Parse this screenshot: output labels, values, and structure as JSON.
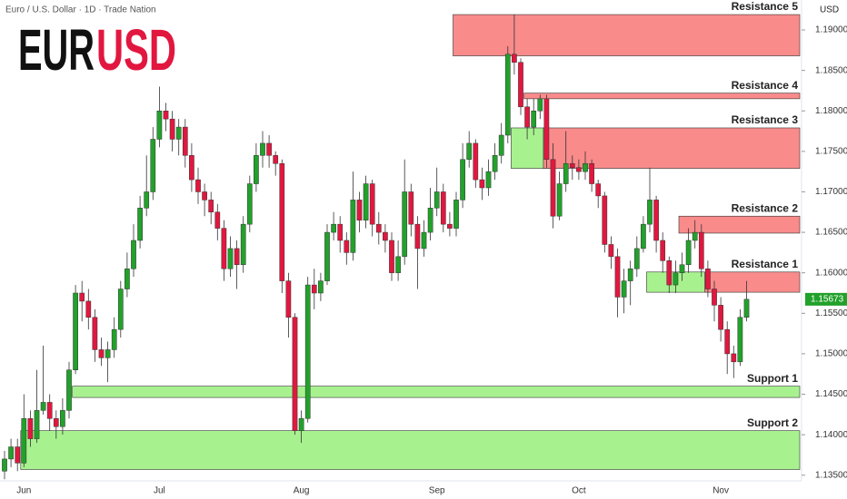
{
  "chart_data": {
    "type": "candlestick",
    "header": "Euro / U.S. Dollar · 1D · Trade Nation",
    "logo": [
      "EUR",
      "USD"
    ],
    "currency": "USD",
    "last_price": 1.15673,
    "up_color": "#22a12b",
    "down_color": "#e2173f",
    "resistance_color": "#f98b8b",
    "support_color": "#a8f18f",
    "ylim": [
      1.1343,
      1.1937
    ],
    "yticks": [
      {
        "value": 1.135,
        "label": "1.13500"
      },
      {
        "value": 1.14,
        "label": "1.14000"
      },
      {
        "value": 1.145,
        "label": "1.14500"
      },
      {
        "value": 1.15,
        "label": "1.15000"
      },
      {
        "value": 1.155,
        "label": "1.15500"
      },
      {
        "value": 1.16,
        "label": "1.16000"
      },
      {
        "value": 1.165,
        "label": "1.16500"
      },
      {
        "value": 1.17,
        "label": "1.17000"
      },
      {
        "value": 1.175,
        "label": "1.17500"
      },
      {
        "value": 1.18,
        "label": "1.18000"
      },
      {
        "value": 1.185,
        "label": "1.18500"
      },
      {
        "value": 1.19,
        "label": "1.19000"
      }
    ],
    "categories": [
      null,
      null,
      null,
      "Jun",
      null,
      null,
      null,
      null,
      null,
      null,
      null,
      null,
      null,
      null,
      null,
      null,
      null,
      null,
      null,
      null,
      null,
      null,
      null,
      null,
      "Jul",
      null,
      null,
      null,
      null,
      null,
      null,
      null,
      null,
      null,
      null,
      null,
      null,
      null,
      null,
      null,
      null,
      null,
      null,
      null,
      null,
      null,
      "Aug",
      null,
      null,
      null,
      null,
      null,
      null,
      null,
      null,
      null,
      null,
      null,
      null,
      null,
      null,
      null,
      null,
      null,
      null,
      null,
      null,
      "Sep",
      null,
      null,
      null,
      null,
      null,
      null,
      null,
      null,
      null,
      null,
      null,
      null,
      null,
      null,
      null,
      null,
      null,
      null,
      null,
      null,
      null,
      "Oct",
      null,
      null,
      null,
      null,
      null,
      null,
      null,
      null,
      null,
      null,
      null,
      null,
      null,
      null,
      null,
      null,
      null,
      null,
      null,
      null,
      null,
      "Nov",
      null,
      null,
      null,
      null
    ],
    "open": [
      1.1355,
      1.137,
      1.1385,
      1.1365,
      1.142,
      1.1395,
      1.143,
      1.144,
      1.142,
      1.141,
      1.143,
      1.148,
      1.1575,
      1.1565,
      1.1545,
      1.1505,
      1.1495,
      1.1505,
      1.153,
      1.158,
      1.1605,
      1.164,
      1.168,
      1.17,
      1.1765,
      1.18,
      1.179,
      1.1765,
      1.178,
      1.1745,
      1.1715,
      1.17,
      1.169,
      1.1675,
      1.1655,
      1.1605,
      1.163,
      1.161,
      1.166,
      1.171,
      1.1745,
      1.176,
      1.1745,
      1.1735,
      1.159,
      1.1545,
      1.1405,
      1.142,
      1.1585,
      1.1575,
      1.159,
      1.165,
      1.166,
      1.164,
      1.1625,
      1.169,
      1.1665,
      1.171,
      1.166,
      1.165,
      1.164,
      1.16,
      1.162,
      1.17,
      1.166,
      1.163,
      1.165,
      1.168,
      1.17,
      1.166,
      1.1655,
      1.169,
      1.174,
      1.176,
      1.1715,
      1.1705,
      1.1725,
      1.1745,
      1.177,
      1.187,
      1.186,
      1.1805,
      1.178,
      1.18,
      1.1815,
      1.174,
      1.167,
      1.171,
      1.1735,
      1.173,
      1.1725,
      1.1735,
      1.171,
      1.1695,
      1.1635,
      1.162,
      1.157,
      1.159,
      1.1605,
      1.163,
      1.166,
      1.169,
      1.164,
      1.1615,
      1.1585,
      1.16,
      1.161,
      1.164,
      1.165,
      1.1605,
      1.158,
      1.156,
      1.153,
      1.15,
      1.149,
      1.1545
    ],
    "high": [
      1.138,
      1.1395,
      1.1395,
      1.145,
      1.143,
      1.148,
      1.151,
      1.145,
      1.143,
      1.1445,
      1.149,
      1.1585,
      1.159,
      1.158,
      1.1555,
      1.152,
      1.1515,
      1.1545,
      1.159,
      1.1625,
      1.166,
      1.1695,
      1.1745,
      1.178,
      1.183,
      1.181,
      1.18,
      1.179,
      1.179,
      1.176,
      1.173,
      1.171,
      1.17,
      1.1685,
      1.1665,
      1.1645,
      1.164,
      1.167,
      1.172,
      1.176,
      1.1775,
      1.177,
      1.175,
      1.174,
      1.16,
      1.155,
      1.143,
      1.1595,
      1.1605,
      1.16,
      1.166,
      1.1675,
      1.167,
      1.165,
      1.1725,
      1.17,
      1.172,
      1.1715,
      1.1675,
      1.166,
      1.165,
      1.164,
      1.174,
      1.171,
      1.167,
      1.1665,
      1.1705,
      1.173,
      1.171,
      1.1675,
      1.17,
      1.176,
      1.1775,
      1.1765,
      1.173,
      1.174,
      1.176,
      1.1785,
      1.188,
      1.1919,
      1.1865,
      1.1815,
      1.1815,
      1.182,
      1.182,
      1.176,
      1.1725,
      1.1775,
      1.1745,
      1.174,
      1.175,
      1.174,
      1.1715,
      1.17,
      1.1645,
      1.163,
      1.1605,
      1.1615,
      1.1645,
      1.167,
      1.173,
      1.1695,
      1.165,
      1.162,
      1.1615,
      1.1625,
      1.1655,
      1.1665,
      1.166,
      1.1615,
      1.159,
      1.157,
      1.154,
      1.151,
      1.1555,
      1.159
    ],
    "low": [
      1.1345,
      1.136,
      1.1355,
      1.136,
      1.1385,
      1.139,
      1.1425,
      1.1405,
      1.1395,
      1.14,
      1.142,
      1.1475,
      1.154,
      1.153,
      1.149,
      1.1485,
      1.1465,
      1.1495,
      1.152,
      1.157,
      1.1595,
      1.163,
      1.167,
      1.169,
      1.1755,
      1.1775,
      1.175,
      1.1745,
      1.173,
      1.17,
      1.1685,
      1.167,
      1.166,
      1.164,
      1.159,
      1.1595,
      1.158,
      1.16,
      1.165,
      1.17,
      1.173,
      1.173,
      1.172,
      1.1575,
      1.152,
      1.14,
      1.139,
      1.1415,
      1.1555,
      1.1565,
      1.1585,
      1.164,
      1.1625,
      1.161,
      1.1615,
      1.165,
      1.1655,
      1.1645,
      1.1635,
      1.1625,
      1.159,
      1.159,
      1.161,
      1.1645,
      1.158,
      1.162,
      1.164,
      1.167,
      1.165,
      1.1645,
      1.1645,
      1.168,
      1.173,
      1.1705,
      1.169,
      1.1695,
      1.1715,
      1.1735,
      1.176,
      1.1845,
      1.1795,
      1.1765,
      1.177,
      1.179,
      1.173,
      1.1655,
      1.1665,
      1.17,
      1.1715,
      1.1715,
      1.1715,
      1.17,
      1.168,
      1.1625,
      1.1605,
      1.1545,
      1.155,
      1.156,
      1.1595,
      1.1625,
      1.165,
      1.1625,
      1.16,
      1.1575,
      1.1575,
      1.159,
      1.16,
      1.163,
      1.1595,
      1.157,
      1.154,
      1.1515,
      1.1475,
      1.147,
      1.1485,
      1.154
    ],
    "close": [
      1.137,
      1.1385,
      1.1365,
      1.142,
      1.1395,
      1.143,
      1.144,
      1.142,
      1.141,
      1.143,
      1.148,
      1.1575,
      1.1565,
      1.1545,
      1.1505,
      1.1495,
      1.1505,
      1.153,
      1.158,
      1.1605,
      1.164,
      1.168,
      1.17,
      1.1765,
      1.18,
      1.179,
      1.1765,
      1.178,
      1.1745,
      1.1715,
      1.17,
      1.169,
      1.1675,
      1.1655,
      1.1605,
      1.163,
      1.161,
      1.166,
      1.171,
      1.1745,
      1.176,
      1.1745,
      1.1735,
      1.159,
      1.1545,
      1.1405,
      1.142,
      1.1585,
      1.1575,
      1.159,
      1.165,
      1.166,
      1.164,
      1.1625,
      1.169,
      1.1665,
      1.171,
      1.166,
      1.165,
      1.164,
      1.16,
      1.162,
      1.17,
      1.166,
      1.163,
      1.165,
      1.168,
      1.17,
      1.166,
      1.1655,
      1.169,
      1.174,
      1.176,
      1.1715,
      1.1705,
      1.1725,
      1.1745,
      1.177,
      1.187,
      1.186,
      1.1805,
      1.178,
      1.18,
      1.1815,
      1.174,
      1.167,
      1.171,
      1.1735,
      1.173,
      1.1725,
      1.1735,
      1.171,
      1.1695,
      1.1635,
      1.162,
      1.157,
      1.159,
      1.1605,
      1.163,
      1.166,
      1.169,
      1.164,
      1.1615,
      1.1585,
      1.16,
      1.161,
      1.164,
      1.165,
      1.1605,
      1.158,
      1.156,
      1.153,
      1.15,
      1.149,
      1.1545,
      1.15673
    ],
    "zones": [
      {
        "label": "Resistance 5",
        "kind": "resistance",
        "high": 1.1919,
        "low": 1.1868,
        "start": 70
      },
      {
        "label": "Resistance 4",
        "kind": "resistance",
        "high": 1.1822,
        "low": 1.1815,
        "start": 81
      },
      {
        "kind": "support",
        "high": 1.1779,
        "low": 1.1729,
        "start": 79,
        "end": 84
      },
      {
        "label": "Resistance 3",
        "kind": "resistance",
        "high": 1.1779,
        "low": 1.1729,
        "start": 84
      },
      {
        "label": "Resistance 2",
        "kind": "resistance",
        "high": 1.167,
        "low": 1.1649,
        "start": 105
      },
      {
        "kind": "support",
        "high": 1.1601,
        "low": 1.1576,
        "start": 100,
        "end": 109
      },
      {
        "label": "Resistance 1",
        "kind": "resistance",
        "high": 1.1601,
        "low": 1.1576,
        "start": 109
      },
      {
        "label": "Support 1",
        "kind": "support",
        "high": 1.146,
        "low": 1.1446,
        "start": 11
      },
      {
        "label": "Support 2",
        "kind": "support",
        "high": 1.1405,
        "low": 1.1357,
        "start": 3
      }
    ]
  }
}
